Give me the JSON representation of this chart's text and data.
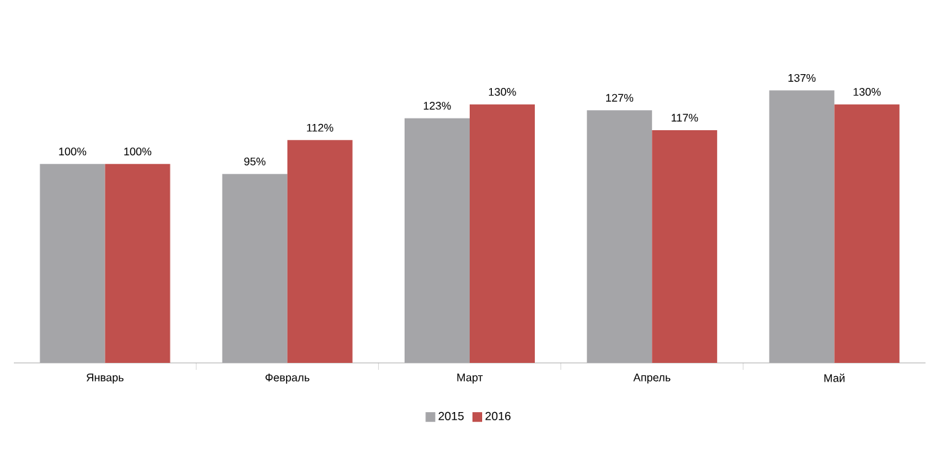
{
  "chart_data": {
    "type": "bar",
    "categories": [
      "Январь",
      "Февраль",
      "Март",
      "Апрель",
      "Май"
    ],
    "series": [
      {
        "name": "2015",
        "color": "#a5a5a8",
        "values": [
          100,
          95,
          123,
          127,
          137
        ],
        "value_labels": [
          "100%",
          "95%",
          "123%",
          "127%",
          "137%"
        ]
      },
      {
        "name": "2016",
        "color": "#c0504d",
        "values": [
          100,
          112,
          130,
          117,
          130
        ],
        "value_labels": [
          "100%",
          "112%",
          "130%",
          "117%",
          "130%"
        ]
      }
    ],
    "legend": "bottom"
  }
}
